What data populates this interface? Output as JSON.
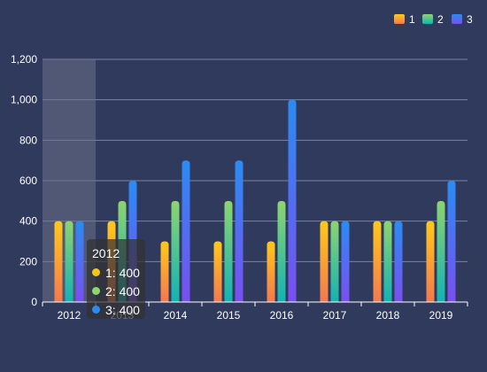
{
  "chart_data": {
    "type": "bar",
    "categories": [
      "2012",
      "2013",
      "2014",
      "2015",
      "2016",
      "2017",
      "2018",
      "2019"
    ],
    "series": [
      {
        "name": "1",
        "values": [
          400,
          400,
          300,
          300,
          300,
          400,
          400,
          400
        ]
      },
      {
        "name": "2",
        "values": [
          400,
          500,
          500,
          500,
          500,
          400,
          400,
          500
        ]
      },
      {
        "name": "3",
        "values": [
          400,
          600,
          700,
          700,
          1000,
          400,
          400,
          600
        ]
      }
    ],
    "ylim": [
      0,
      1200
    ],
    "yticks": [
      "0",
      "200",
      "400",
      "600",
      "800",
      "1,000",
      "1,200"
    ],
    "ytick_values": [
      0,
      200,
      400,
      600,
      800,
      1000,
      1200
    ],
    "grid": true,
    "legend_position": "top-right",
    "colors": {
      "background": "#2f3a5d",
      "series_gradients": [
        [
          "#ffc91a",
          "#f4794f"
        ],
        [
          "#8ed46f",
          "#12b3b3"
        ],
        [
          "#2a8cf2",
          "#7a4ff0"
        ]
      ],
      "tooltip_dots": [
        "#f5c518",
        "#8ed46f",
        "#2a8cf2"
      ]
    },
    "highlighted_category": "2012",
    "tooltip": {
      "title": "2012",
      "rows": [
        "1: 400",
        "2: 400",
        "3: 400"
      ]
    }
  }
}
